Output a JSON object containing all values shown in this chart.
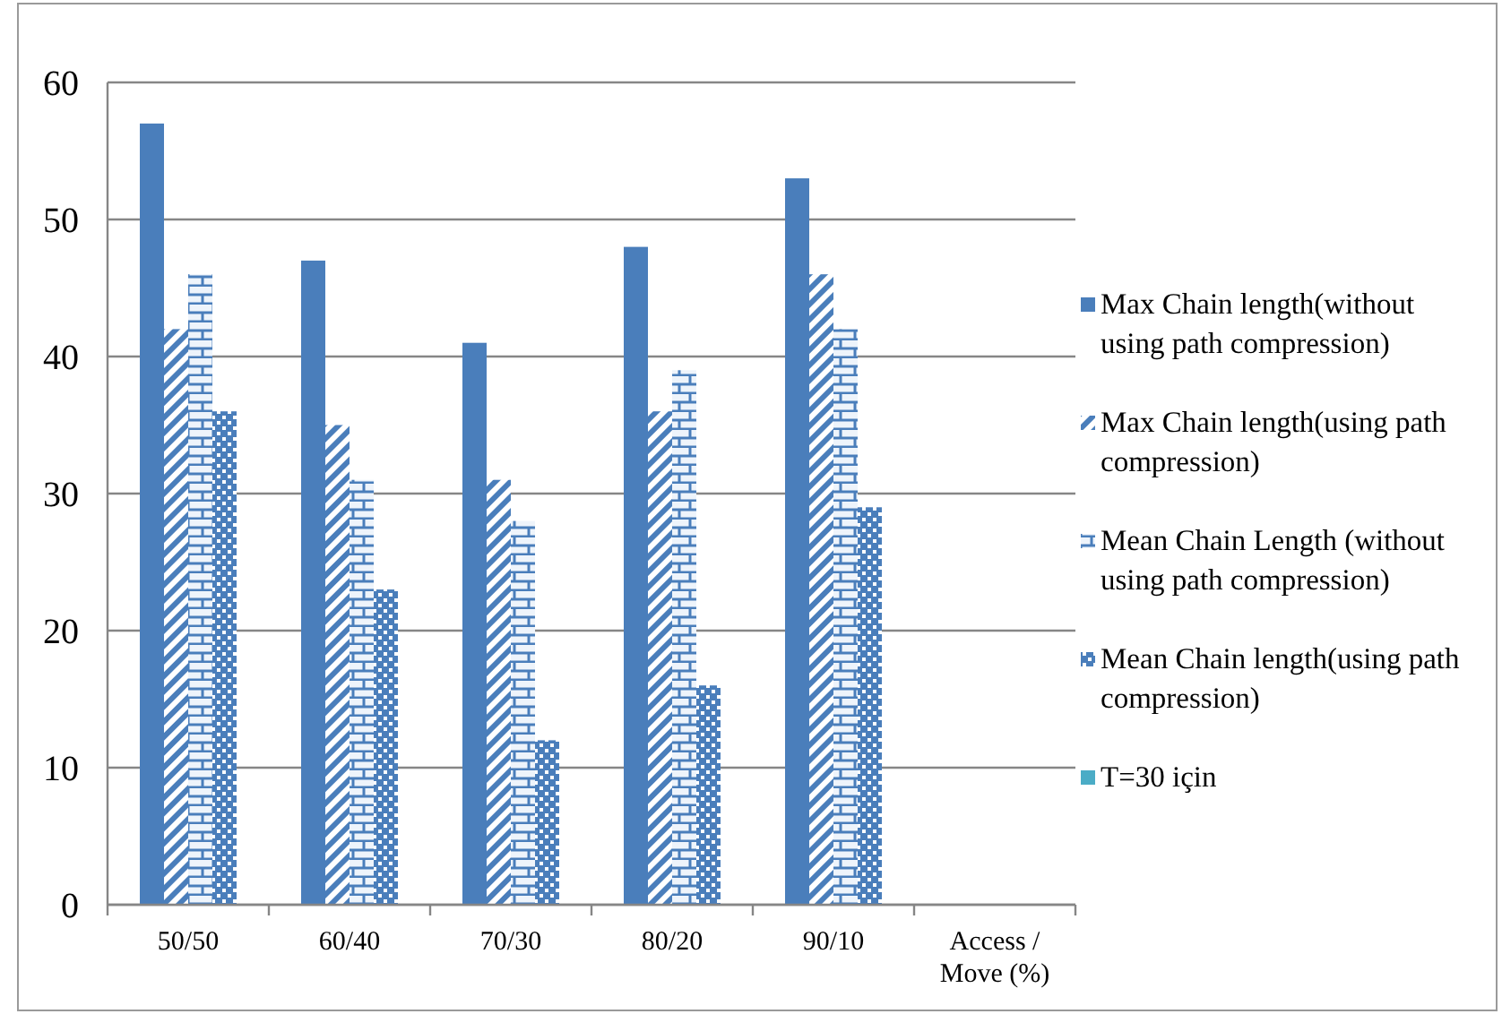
{
  "chart_data": {
    "type": "bar",
    "categories": [
      "50/50",
      "60/40",
      "70/30",
      "80/20",
      "90/10",
      "Access / Move (%)"
    ],
    "series": [
      {
        "name": "Max Chain length(without using path compression)",
        "color": "#4a7ebb",
        "values": [
          57,
          47,
          41,
          48,
          53,
          null
        ]
      },
      {
        "name": "Max Chain length(using path compression)",
        "color": "#4a7ebb",
        "values": [
          42,
          35,
          31,
          36,
          46,
          null
        ]
      },
      {
        "name": "Mean Chain Length (without using path compression)",
        "color": "#4a7ebb",
        "values": [
          46,
          31,
          28,
          39,
          42,
          null
        ]
      },
      {
        "name": "Mean Chain length(using path compression)",
        "color": "#4a7ebb",
        "values": [
          36,
          23,
          12,
          16,
          29,
          null
        ]
      },
      {
        "name": "T=30 için",
        "color": "#4bacc6",
        "values": [
          null,
          null,
          null,
          null,
          null,
          null
        ]
      }
    ],
    "ylim": [
      0,
      60
    ],
    "yticks": [
      0,
      10,
      20,
      30,
      40,
      50,
      60
    ],
    "grid": "y",
    "legend": "right"
  }
}
